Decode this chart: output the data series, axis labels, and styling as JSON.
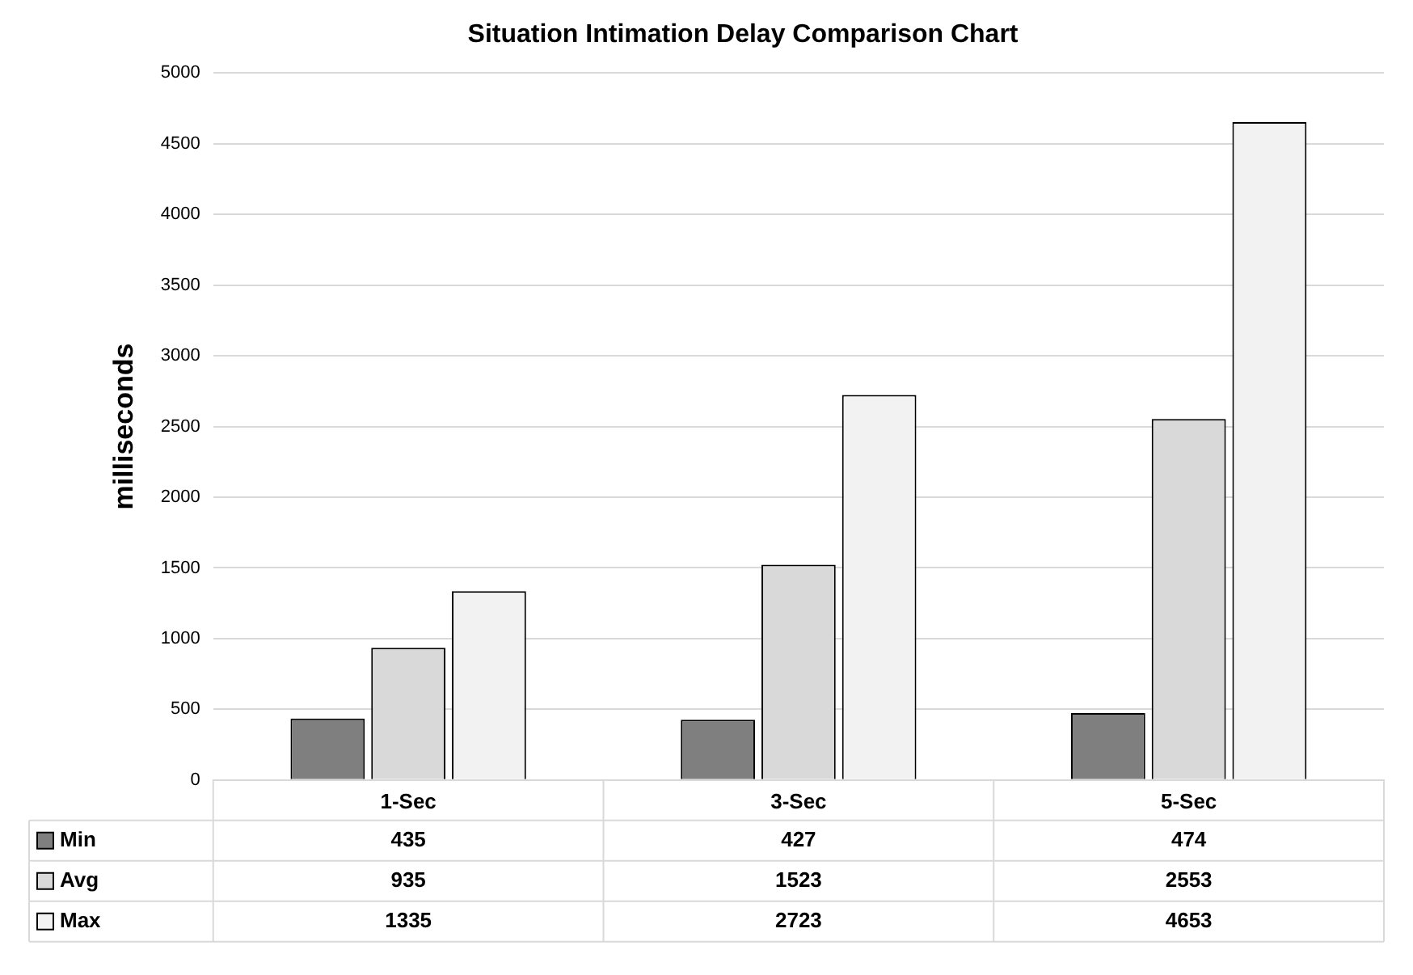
{
  "chart_data": {
    "type": "bar",
    "title": "Situation Intimation Delay Comparison Chart",
    "ylabel": "milliseconds",
    "categories": [
      "1-Sec",
      "3-Sec",
      "5-Sec"
    ],
    "series": [
      {
        "name": "Min",
        "color": "#7f7f7f",
        "values": [
          435,
          427,
          474
        ]
      },
      {
        "name": "Avg",
        "color": "#d9d9d9",
        "values": [
          935,
          1523,
          2553
        ]
      },
      {
        "name": "Max",
        "color": "#f2f2f2",
        "values": [
          1335,
          2723,
          4653
        ]
      }
    ],
    "ylim": [
      0,
      5000
    ],
    "yticks": [
      0,
      500,
      1000,
      1500,
      2000,
      2500,
      3000,
      3500,
      4000,
      4500,
      5000
    ],
    "grid": "y",
    "data_labels": true,
    "legend": "bottom"
  }
}
